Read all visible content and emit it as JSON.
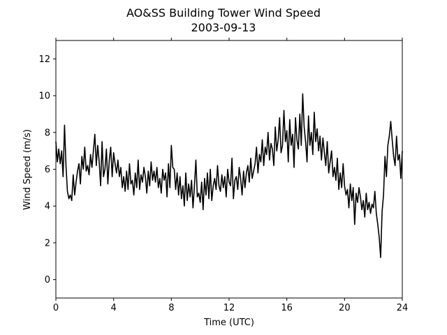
{
  "chart_data": {
    "type": "line",
    "title": "AO&SS Building Tower Wind Speed",
    "subtitle": "2003-09-13",
    "xlabel": "Time (UTC)",
    "ylabel": "Wind Speed (m/s)",
    "xlim": [
      0,
      24
    ],
    "ylim": [
      -1,
      13
    ],
    "xticks": [
      0,
      4,
      8,
      12,
      16,
      20,
      24
    ],
    "yticks": [
      0,
      2,
      4,
      6,
      8,
      10,
      12
    ],
    "grid": false,
    "line_color": "#000000",
    "series": [
      {
        "x": [
          0.0,
          0.1,
          0.2,
          0.3,
          0.4,
          0.5,
          0.6,
          0.7,
          0.8,
          0.9,
          1.0,
          1.1,
          1.2,
          1.3,
          1.4,
          1.5,
          1.6,
          1.7,
          1.8,
          1.9,
          2.0,
          2.1,
          2.2,
          2.3,
          2.4,
          2.5,
          2.6,
          2.7,
          2.8,
          2.9,
          3.0,
          3.1,
          3.2,
          3.3,
          3.4,
          3.5,
          3.6,
          3.7,
          3.8,
          3.9,
          4.0,
          4.1,
          4.2,
          4.3,
          4.4,
          4.5,
          4.6,
          4.7,
          4.8,
          4.9,
          5.0,
          5.1,
          5.2,
          5.3,
          5.4,
          5.5,
          5.6,
          5.7,
          5.8,
          5.9,
          6.0,
          6.1,
          6.2,
          6.3,
          6.4,
          6.5,
          6.6,
          6.7,
          6.8,
          6.9,
          7.0,
          7.1,
          7.2,
          7.3,
          7.4,
          7.5,
          7.6,
          7.7,
          7.8,
          7.9,
          8.0,
          8.1,
          8.2,
          8.3,
          8.4,
          8.5,
          8.6,
          8.7,
          8.8,
          8.9,
          9.0,
          9.1,
          9.2,
          9.3,
          9.4,
          9.5,
          9.6,
          9.7,
          9.8,
          9.9,
          10.0,
          10.1,
          10.2,
          10.3,
          10.4,
          10.5,
          10.6,
          10.7,
          10.8,
          10.9,
          11.0,
          11.1,
          11.2,
          11.3,
          11.4,
          11.5,
          11.6,
          11.7,
          11.8,
          11.9,
          12.0,
          12.1,
          12.2,
          12.3,
          12.4,
          12.5,
          12.6,
          12.7,
          12.8,
          12.9,
          13.0,
          13.1,
          13.2,
          13.3,
          13.4,
          13.5,
          13.6,
          13.7,
          13.8,
          13.9,
          14.0,
          14.1,
          14.2,
          14.3,
          14.4,
          14.5,
          14.6,
          14.7,
          14.8,
          14.9,
          15.0,
          15.1,
          15.2,
          15.3,
          15.4,
          15.5,
          15.6,
          15.7,
          15.8,
          15.9,
          16.0,
          16.1,
          16.2,
          16.3,
          16.4,
          16.5,
          16.6,
          16.7,
          16.8,
          16.9,
          17.0,
          17.1,
          17.2,
          17.3,
          17.4,
          17.5,
          17.6,
          17.7,
          17.8,
          17.9,
          18.0,
          18.1,
          18.2,
          18.3,
          18.4,
          18.5,
          18.6,
          18.7,
          18.8,
          18.9,
          19.0,
          19.1,
          19.2,
          19.3,
          19.4,
          19.5,
          19.6,
          19.7,
          19.8,
          19.9,
          20.0,
          20.1,
          20.2,
          20.3,
          20.4,
          20.5,
          20.6,
          20.7,
          20.8,
          20.9,
          21.0,
          21.1,
          21.2,
          21.3,
          21.4,
          21.5,
          21.6,
          21.7,
          21.8,
          21.9,
          22.0,
          22.1,
          22.2,
          22.3,
          22.4,
          22.5,
          22.6,
          22.7,
          22.8,
          22.9,
          23.0,
          23.1,
          23.2,
          23.3,
          23.4,
          23.5,
          23.6,
          23.7,
          23.8,
          23.9,
          24.0
        ],
        "y": [
          7.5,
          6.4,
          7.1,
          6.3,
          7.0,
          5.6,
          8.4,
          6.2,
          4.8,
          4.4,
          4.6,
          4.3,
          5.7,
          4.6,
          5.3,
          5.9,
          6.3,
          5.2,
          6.7,
          6.0,
          7.2,
          5.9,
          6.2,
          5.7,
          6.8,
          6.1,
          7.0,
          7.9,
          6.2,
          7.3,
          6.4,
          5.1,
          7.5,
          5.6,
          6.0,
          7.1,
          5.2,
          6.5,
          7.2,
          5.6,
          6.9,
          6.3,
          5.8,
          6.5,
          5.6,
          6.1,
          5.0,
          5.6,
          4.8,
          5.9,
          4.9,
          6.3,
          5.2,
          5.4,
          4.6,
          5.8,
          5.0,
          6.5,
          4.9,
          5.7,
          5.3,
          6.1,
          5.6,
          4.7,
          5.9,
          5.1,
          6.4,
          5.4,
          5.9,
          5.3,
          6.1,
          5.0,
          5.5,
          4.7,
          6.0,
          5.4,
          5.8,
          4.5,
          6.3,
          5.0,
          7.3,
          6.1,
          6.0,
          4.9,
          5.8,
          4.6,
          5.6,
          4.4,
          5.1,
          4.0,
          5.8,
          4.3,
          5.2,
          4.5,
          5.4,
          3.9,
          5.1,
          6.5,
          4.5,
          4.7,
          4.2,
          5.3,
          3.8,
          5.5,
          4.6,
          5.8,
          4.4,
          6.0,
          4.3,
          5.1,
          5.5,
          4.9,
          6.2,
          5.1,
          4.8,
          5.7,
          5.0,
          5.6,
          4.5,
          6.0,
          5.3,
          5.1,
          6.6,
          4.4,
          5.4,
          5.6,
          4.9,
          6.1,
          5.5,
          4.6,
          5.9,
          5.0,
          5.8,
          6.2,
          5.3,
          6.6,
          5.5,
          5.9,
          6.3,
          7.2,
          5.8,
          6.8,
          6.4,
          7.6,
          6.2,
          7.2,
          6.8,
          8.0,
          6.5,
          7.4,
          7.1,
          6.2,
          8.3,
          7.0,
          7.6,
          8.8,
          6.9,
          7.3,
          9.2,
          7.5,
          8.1,
          6.4,
          8.7,
          7.3,
          7.9,
          6.1,
          8.8,
          7.6,
          7.1,
          9.0,
          7.3,
          10.1,
          8.3,
          7.5,
          6.4,
          8.9,
          7.3,
          8.0,
          6.8,
          9.1,
          7.5,
          8.2,
          7.0,
          7.8,
          6.5,
          7.7,
          6.9,
          6.2,
          7.5,
          5.8,
          6.4,
          7.0,
          5.6,
          6.1,
          5.4,
          6.6,
          4.9,
          5.8,
          5.0,
          6.3,
          5.1,
          4.6,
          4.9,
          3.9,
          5.2,
          4.3,
          5.0,
          3.0,
          4.7,
          4.2,
          5.0,
          4.5,
          3.8,
          4.3,
          3.4,
          4.7,
          3.8,
          4.2,
          3.6,
          4.1,
          3.9,
          4.8,
          3.6,
          3.0,
          2.3,
          1.2,
          3.7,
          4.6,
          6.7,
          5.6,
          7.3,
          7.8,
          8.6,
          7.6,
          6.7,
          6.2,
          7.8,
          6.5,
          6.8,
          5.5,
          7.0
        ]
      }
    ]
  }
}
